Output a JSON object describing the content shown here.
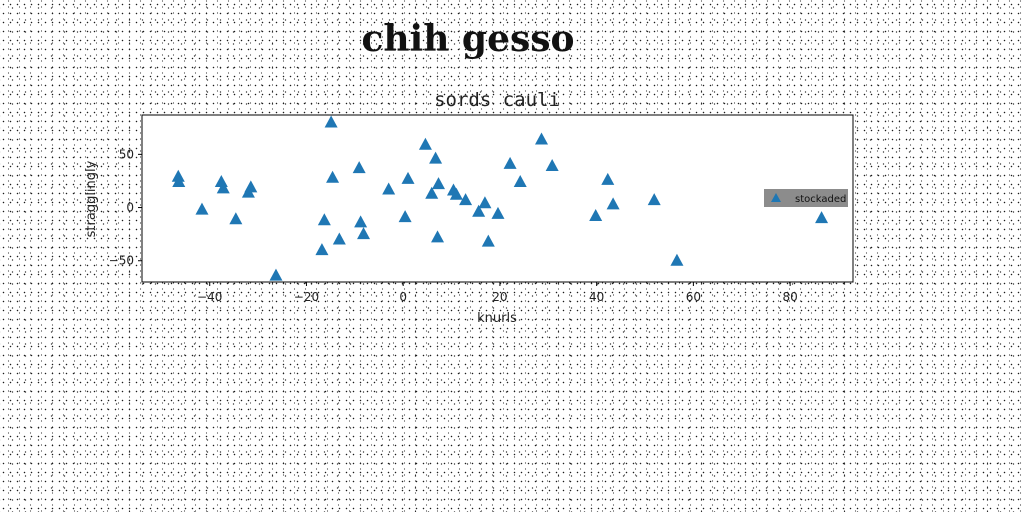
{
  "page": {
    "title": "chih gesso"
  },
  "chart_data": {
    "type": "scatter",
    "title": "sords cauli",
    "xlabel": "knurls",
    "ylabel": "stragglingly",
    "xlim": [
      -54,
      93
    ],
    "ylim": [
      -70,
      87
    ],
    "xticks": [
      -40,
      -20,
      0,
      20,
      40,
      60,
      80
    ],
    "yticks": [
      -50,
      0,
      50
    ],
    "grid": false,
    "legend": {
      "position": "center-right",
      "entries": [
        "stockaded"
      ]
    },
    "series": [
      {
        "name": "stockaded",
        "marker": "triangle",
        "color": "#1f77b4",
        "x": [
          -46.5,
          -46.4,
          -41.6,
          -37.6,
          -37.2,
          -34.6,
          -32.0,
          -31.5,
          -26.3,
          -16.8,
          -16.3,
          -14.9,
          -14.6,
          -13.2,
          -9.1,
          -8.8,
          -8.2,
          -3.0,
          0.4,
          1.0,
          4.6,
          5.9,
          6.7,
          7.1,
          7.3,
          10.4,
          11.0,
          12.9,
          15.6,
          16.9,
          17.6,
          19.6,
          22.1,
          24.2,
          28.6,
          30.8,
          39.8,
          42.3,
          43.4,
          51.9,
          56.6,
          86.5
        ],
        "y": [
          29,
          24,
          -2,
          24,
          18,
          -11,
          14,
          19,
          -64,
          -40,
          -12,
          80,
          28,
          -30,
          37,
          -14,
          -25,
          17,
          -9,
          27,
          59,
          13,
          46,
          -28,
          22,
          16,
          12,
          7,
          -4,
          4,
          -32,
          -6,
          41,
          24,
          64,
          39,
          -8,
          26,
          3,
          7,
          -50,
          -10
        ]
      }
    ]
  }
}
